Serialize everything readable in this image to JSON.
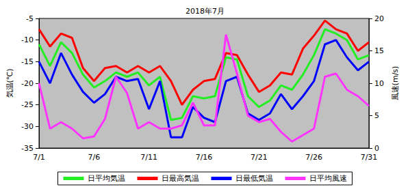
{
  "chart_data": {
    "type": "line",
    "title": "2018年7月",
    "y_label": "気温(℃)",
    "y2_label": "風速(m/s)",
    "categories": [
      "7/1",
      null,
      null,
      null,
      null,
      "7/6",
      null,
      null,
      null,
      null,
      "7/11",
      null,
      null,
      null,
      null,
      "7/16",
      null,
      null,
      null,
      null,
      "7/21",
      null,
      null,
      null,
      null,
      "7/26",
      null,
      null,
      null,
      null,
      "7/31"
    ],
    "ylim": [
      -35,
      -5
    ],
    "yticks": [
      -35,
      -30,
      -25,
      -20,
      -15,
      -10,
      -5
    ],
    "y2lim": [
      0,
      20
    ],
    "y2ticks": [
      0,
      5,
      10,
      15,
      20
    ],
    "grid": false,
    "legend": "bottom",
    "series": [
      {
        "name": "日平均気温",
        "color": "#22ee22",
        "values": [
          -11,
          -16,
          -10.5,
          -13,
          -18,
          -21,
          -19.5,
          -17.5,
          -18.5,
          -17.5,
          -20.5,
          -18.5,
          -28.5,
          -28,
          -23,
          -23.5,
          -23,
          -14,
          -14.5,
          -23,
          -25.5,
          -24,
          -20.5,
          -21.5,
          -18,
          -13.5,
          -7.5,
          -8.5,
          -10,
          -14.5,
          -13.5
        ]
      },
      {
        "name": "日最高気温",
        "color": "#ff0000",
        "values": [
          -7.5,
          -11.5,
          -8.5,
          -9.5,
          -16.5,
          -19.5,
          -16.5,
          -16,
          -17.5,
          -16,
          -17.5,
          -16,
          -19.5,
          -25,
          -21.5,
          -19.5,
          -19,
          -13,
          -13.5,
          -18,
          -22,
          -20.5,
          -17.5,
          -18,
          -12,
          -9,
          -5.5,
          -7.5,
          -8.5,
          -12.5,
          -10.5
        ]
      },
      {
        "name": "日最低気温",
        "color": "#0000ff",
        "values": [
          -15,
          -20,
          -13,
          -18,
          -22,
          -24.5,
          -22.5,
          -18.5,
          -19.5,
          -19,
          -26,
          -19.5,
          -32.5,
          -32.5,
          -25.5,
          -28,
          -29,
          -19.5,
          -18.5,
          -27,
          -28.5,
          -27,
          -22.5,
          -26,
          -23,
          -19.5,
          -11,
          -10,
          -14,
          -17,
          -15
        ]
      },
      {
        "name": "日平均風速",
        "color": "#ff33ff",
        "axis": "y2",
        "values": [
          10,
          3,
          4,
          3,
          1.5,
          1.8,
          4.5,
          11,
          8.5,
          3,
          4,
          3,
          3,
          3.5,
          7,
          3.5,
          3.5,
          17.5,
          11.5,
          5,
          4,
          4.5,
          2.5,
          1,
          2,
          3,
          11,
          11.5,
          9,
          8,
          6.5
        ]
      }
    ]
  }
}
